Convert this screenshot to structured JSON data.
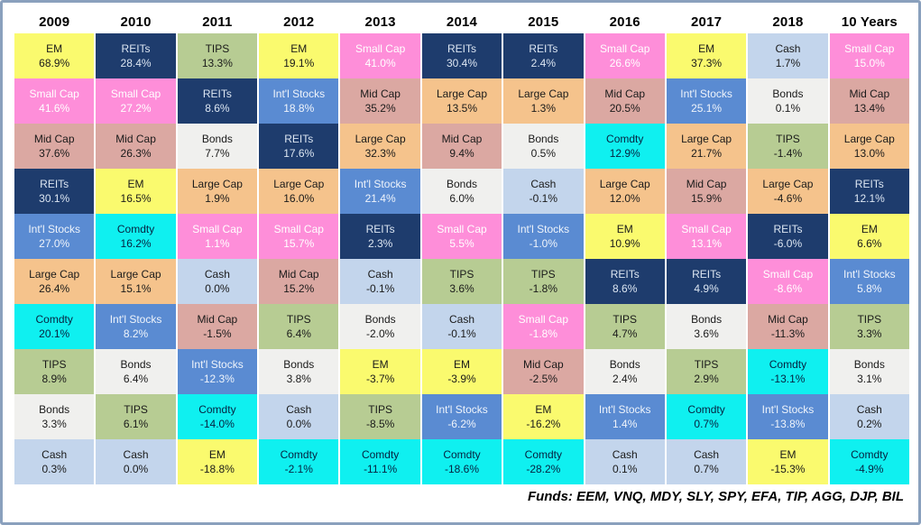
{
  "frame": {
    "footer": "Funds: EEM, VNQ, MDY, SLY, SPY, EFA, TIP, AGG, DJP, BIL"
  },
  "asset_styles": {
    "EM": {
      "bg": "#FAFA6E",
      "fg": "#1a1a1a"
    },
    "REITs": {
      "bg": "#1E3C6D",
      "fg": "#DCE6F2"
    },
    "TIPS": {
      "bg": "#B7CC93",
      "fg": "#1a1a1a"
    },
    "Small Cap": {
      "bg": "#FE8ED9",
      "fg": "#FFFFFF"
    },
    "Int'l Stocks": {
      "bg": "#5A8BD2",
      "fg": "#EFF4FB"
    },
    "Mid Cap": {
      "bg": "#DBA8A2",
      "fg": "#1a1a1a"
    },
    "Large Cap": {
      "bg": "#F5C38C",
      "fg": "#1a1a1a"
    },
    "Bonds": {
      "bg": "#F0F0EE",
      "fg": "#1a1a1a"
    },
    "Cash": {
      "bg": "#C3D5EC",
      "fg": "#1a1a1a"
    },
    "Comdty": {
      "bg": "#0FF0F0",
      "fg": "#062240"
    }
  },
  "chart_data": {
    "type": "table",
    "description": "Periodic table of annual asset class returns, ranked best to worst per year",
    "unit": "%",
    "columns": [
      "2009",
      "2010",
      "2011",
      "2012",
      "2013",
      "2014",
      "2015",
      "2016",
      "2017",
      "2018",
      "10 Years"
    ],
    "ranked_returns": {
      "2009": [
        [
          "EM",
          68.9
        ],
        [
          "Small Cap",
          41.6
        ],
        [
          "Mid Cap",
          37.6
        ],
        [
          "REITs",
          30.1
        ],
        [
          "Int'l Stocks",
          27.0
        ],
        [
          "Large Cap",
          26.4
        ],
        [
          "Comdty",
          20.1
        ],
        [
          "TIPS",
          8.9
        ],
        [
          "Bonds",
          3.3
        ],
        [
          "Cash",
          0.3
        ]
      ],
      "2010": [
        [
          "REITs",
          28.4
        ],
        [
          "Small Cap",
          27.2
        ],
        [
          "Mid Cap",
          26.3
        ],
        [
          "EM",
          16.5
        ],
        [
          "Comdty",
          16.2
        ],
        [
          "Large Cap",
          15.1
        ],
        [
          "Int'l Stocks",
          8.2
        ],
        [
          "Bonds",
          6.4
        ],
        [
          "TIPS",
          6.1
        ],
        [
          "Cash",
          0.0
        ]
      ],
      "2011": [
        [
          "TIPS",
          13.3
        ],
        [
          "REITs",
          8.6
        ],
        [
          "Bonds",
          7.7
        ],
        [
          "Large Cap",
          1.9
        ],
        [
          "Small Cap",
          1.1
        ],
        [
          "Cash",
          0.0
        ],
        [
          "Mid Cap",
          -1.5
        ],
        [
          "Int'l Stocks",
          -12.3
        ],
        [
          "Comdty",
          -14.0
        ],
        [
          "EM",
          -18.8
        ]
      ],
      "2012": [
        [
          "EM",
          19.1
        ],
        [
          "Int'l Stocks",
          18.8
        ],
        [
          "REITs",
          17.6
        ],
        [
          "Large Cap",
          16.0
        ],
        [
          "Small Cap",
          15.7
        ],
        [
          "Mid Cap",
          15.2
        ],
        [
          "TIPS",
          6.4
        ],
        [
          "Bonds",
          3.8
        ],
        [
          "Cash",
          0.0
        ],
        [
          "Comdty",
          -2.1
        ]
      ],
      "2013": [
        [
          "Small Cap",
          41.0
        ],
        [
          "Mid Cap",
          35.2
        ],
        [
          "Large Cap",
          32.3
        ],
        [
          "Int'l Stocks",
          21.4
        ],
        [
          "REITs",
          2.3
        ],
        [
          "Cash",
          -0.1
        ],
        [
          "Bonds",
          -2.0
        ],
        [
          "EM",
          -3.7
        ],
        [
          "TIPS",
          -8.5
        ],
        [
          "Comdty",
          -11.1
        ]
      ],
      "2014": [
        [
          "REITs",
          30.4
        ],
        [
          "Large Cap",
          13.5
        ],
        [
          "Mid Cap",
          9.4
        ],
        [
          "Bonds",
          6.0
        ],
        [
          "Small Cap",
          5.5
        ],
        [
          "TIPS",
          3.6
        ],
        [
          "Cash",
          -0.1
        ],
        [
          "EM",
          -3.9
        ],
        [
          "Int'l Stocks",
          -6.2
        ],
        [
          "Comdty",
          -18.6
        ]
      ],
      "2015": [
        [
          "REITs",
          2.4
        ],
        [
          "Large Cap",
          1.3
        ],
        [
          "Bonds",
          0.5
        ],
        [
          "Cash",
          -0.1
        ],
        [
          "Int'l Stocks",
          -1.0
        ],
        [
          "TIPS",
          -1.8
        ],
        [
          "Small Cap",
          -1.8
        ],
        [
          "Mid Cap",
          -2.5
        ],
        [
          "EM",
          -16.2
        ],
        [
          "Comdty",
          -28.2
        ]
      ],
      "2016": [
        [
          "Small Cap",
          26.6
        ],
        [
          "Mid Cap",
          20.5
        ],
        [
          "Comdty",
          12.9
        ],
        [
          "Large Cap",
          12.0
        ],
        [
          "EM",
          10.9
        ],
        [
          "REITs",
          8.6
        ],
        [
          "TIPS",
          4.7
        ],
        [
          "Bonds",
          2.4
        ],
        [
          "Int'l Stocks",
          1.4
        ],
        [
          "Cash",
          0.1
        ]
      ],
      "2017": [
        [
          "EM",
          37.3
        ],
        [
          "Int'l Stocks",
          25.1
        ],
        [
          "Large Cap",
          21.7
        ],
        [
          "Mid Cap",
          15.9
        ],
        [
          "Small Cap",
          13.1
        ],
        [
          "REITs",
          4.9
        ],
        [
          "Bonds",
          3.6
        ],
        [
          "TIPS",
          2.9
        ],
        [
          "Comdty",
          0.7
        ],
        [
          "Cash",
          0.7
        ]
      ],
      "2018": [
        [
          "Cash",
          1.7
        ],
        [
          "Bonds",
          0.1
        ],
        [
          "TIPS",
          -1.4
        ],
        [
          "Large Cap",
          -4.6
        ],
        [
          "REITs",
          -6.0
        ],
        [
          "Small Cap",
          -8.6
        ],
        [
          "Mid Cap",
          -11.3
        ],
        [
          "Comdty",
          -13.1
        ],
        [
          "Int'l Stocks",
          -13.8
        ],
        [
          "EM",
          -15.3
        ]
      ],
      "10 Years": [
        [
          "Small Cap",
          15.0
        ],
        [
          "Mid Cap",
          13.4
        ],
        [
          "Large Cap",
          13.0
        ],
        [
          "REITs",
          12.1
        ],
        [
          "EM",
          6.6
        ],
        [
          "Int'l Stocks",
          5.8
        ],
        [
          "TIPS",
          3.3
        ],
        [
          "Bonds",
          3.1
        ],
        [
          "Cash",
          0.2
        ],
        [
          "Comdty",
          -4.9
        ]
      ]
    }
  }
}
